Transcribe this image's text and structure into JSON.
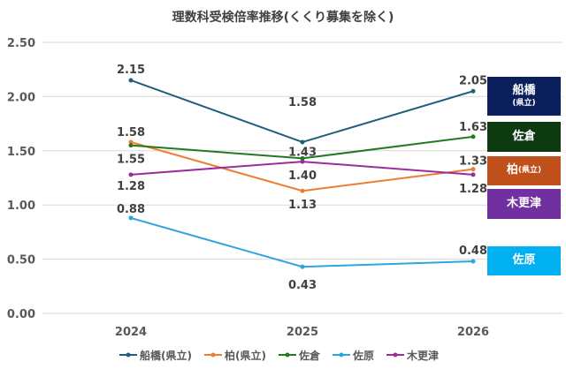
{
  "chart_data": {
    "type": "line",
    "title": "理数科受検倍率推移(くくり募集を除く)",
    "categories": [
      "2024",
      "2025",
      "2026"
    ],
    "ylim": [
      0,
      2.5
    ],
    "yticks": [
      "0.00",
      "0.50",
      "1.00",
      "1.50",
      "2.00",
      "2.50"
    ],
    "grid": true,
    "legend_position": "bottom",
    "series": [
      {
        "name": "船橋(県立)",
        "values": [
          2.15,
          1.58,
          2.05
        ],
        "color": "#1F5F7A"
      },
      {
        "name": "柏(県立)",
        "values": [
          1.58,
          1.13,
          1.33
        ],
        "color": "#ED7D31"
      },
      {
        "name": "佐倉",
        "values": [
          1.55,
          1.43,
          1.63
        ],
        "color": "#217A21"
      },
      {
        "name": "佐原",
        "values": [
          0.88,
          0.43,
          0.48
        ],
        "color": "#2AA6E0"
      },
      {
        "name": "木更津",
        "values": [
          1.28,
          1.4,
          1.28
        ],
        "color": "#9B2D9B"
      }
    ],
    "end_labels": [
      {
        "main": "船橋",
        "sub": "(県立)",
        "color": "#0A1F5C"
      },
      {
        "main": "佐倉",
        "sub": "",
        "color": "#0E3A12"
      },
      {
        "main": "柏",
        "sub": "(県立)",
        "color": "#C0501A"
      },
      {
        "main": "木更津",
        "sub": "",
        "color": "#7030A0"
      },
      {
        "main": "佐原",
        "sub": "",
        "color": "#00B0F0"
      }
    ]
  }
}
